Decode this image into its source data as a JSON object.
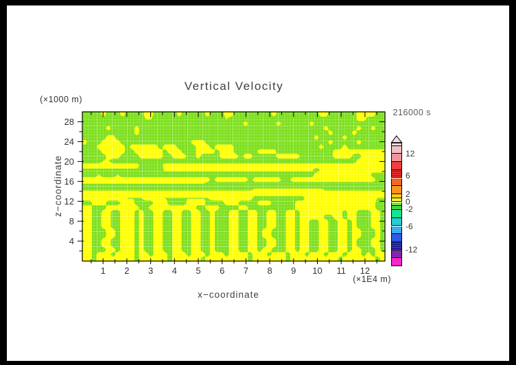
{
  "title": "Vertical Velocity",
  "timestamp": "216000 s",
  "x_axis": {
    "label": "x−coordinate",
    "units": "(×1E4 m)",
    "major_ticks": [
      1,
      2,
      3,
      4,
      5,
      6,
      7,
      8,
      9,
      10,
      11,
      12
    ],
    "minor_ticks": [
      0.5,
      1.5,
      2.5,
      3.5,
      4.5,
      5.5,
      6.5,
      7.5,
      8.5,
      9.5,
      10.5,
      11.5,
      12.5
    ],
    "range": [
      0.13,
      12.84
    ]
  },
  "z_axis": {
    "label": "z−coordinate",
    "units": "(×1000 m)",
    "major_ticks": [
      4,
      8,
      12,
      16,
      20,
      24,
      28
    ],
    "minor_ticks": [
      2,
      6,
      10,
      14,
      18,
      22,
      26
    ],
    "range": [
      0,
      30
    ]
  },
  "colorbar": {
    "labels": [
      {
        "value": "12",
        "y": 216.2
      },
      {
        "value": "6",
        "y": 248.0
      },
      {
        "value": "2",
        "y": 275.3
      },
      {
        "value": "0",
        "y": 286.0
      },
      {
        "value": "-2",
        "y": 297.0
      },
      {
        "value": "-6",
        "y": 322.0
      },
      {
        "value": "-12",
        "y": 356.3
      }
    ],
    "bands": [
      {
        "color": "#f7dcdc",
        "h": 5.0
      },
      {
        "color": "#f6b8bf",
        "h": 11.7
      },
      {
        "color": "#f48b90",
        "h": 11.7
      },
      {
        "color": "#ef3030",
        "h": 11.7
      },
      {
        "color": "#e60b0b",
        "h": 11.7
      },
      {
        "color": "#f45c10",
        "h": 11.7
      },
      {
        "color": "#fb8d10",
        "h": 11.7
      },
      {
        "color": "#fec40c",
        "h": 5.8
      },
      {
        "color": "#ffff00",
        "h": 5.8
      },
      {
        "color": "#7de01c",
        "h": 5.8
      },
      {
        "color": "#2fd32f",
        "h": 5.8
      },
      {
        "color": "#00e389",
        "h": 11.7
      },
      {
        "color": "#0bcfd0",
        "h": 11.7
      },
      {
        "color": "#2da4f2",
        "h": 11.7
      },
      {
        "color": "#1f4fe0",
        "h": 11.7
      },
      {
        "color": "#1b1b8f",
        "h": 11.7
      },
      {
        "color": "#7b14ad",
        "h": 11.7
      },
      {
        "color": "#f618c4",
        "h": 11.4
      }
    ],
    "arrow_color": "#f7dcdc"
  },
  "chart_data": {
    "type": "heatmap",
    "title": "Vertical Velocity",
    "time_label": "216000 s",
    "xlabel": "x−coordinate (×1E4 m)",
    "ylabel": "z−coordinate (×1000 m)",
    "xlim": [
      0.13,
      12.84
    ],
    "ylim": [
      0,
      30.2
    ],
    "field_colors": {
      "positive_band_0_1": "#ffff00",
      "negative_band_-1_0": "#7de01c"
    },
    "grid_encoding": "rows top-to-bottom, chars 0-9 map to field 0..1; >0.5 renders yellow (updraft), <=0.5 green (downdraft)",
    "grid": [
      "0000900090000990000090000090009900000000900000000099000000999900",
      "0000000000000550000000000000005000000000000000000000000000990000",
      "0000000000000000000000000000000000900000090000009000000000000000",
      "0000090000090000000000000000000000000000000000000009000000900900",
      "0000000000090000000000000000000000000000000000000000900009000000",
      "0000099000000000000000000000000000000000000000000900000900000000",
      "9000999900000000000000099900000000000000000000000000900000900000",
      "0009999990999999099900009990999900000000000000000090000900000000",
      "0000999990099999909990009999099900000999900000000000099999999999",
      "0000099900009999900999009000099990990000099999000000099990099999",
      "0000550000000000000000000000000000000000000000000000000000999999",
      "9999999999990000099999999999999999999999999999999999999999999999",
      "2222222222220000066666666666666666666666666666666066999999999999",
      "0005000500000000000000000000000000000000000000000999999999999000",
      "9999999999999999999999999990999999909999990099999999999999999900",
      "4444444444444444444444444400000000000000000000000000000000000000",
      "2222222222222222222222222222222222225555555555555552222222222222",
      "9999999999999999999999999999999999999999999999999999999999999999",
      "9999999994444999944444444449999999990000000000099999999999999944",
      "0099900099900009990000999900009990000999000009999999999999999900",
      "9900099999990099999999990099900009900000000009999999999999999900",
      "9900990099909009900990099009000990099009900990999999999099000990",
      "9900990099909009900990099009000990099009900990999990099099000990",
      "9900990099909009900990099009000990099009900990990099009909000990",
      "9900990099909009900990099009000990099009900990990099009909000990",
      "9900099099909009900990099009000990099099000990990099009909900090",
      "9900099099909009900990099009000990099099000990990099009909900090",
      "9900990099909009900990099009000990099009900990990099009909000990",
      "9900990099909009900990099009000990099009900990990099009909000990",
      "9900099099909009900990099009000990099099000990990099009909900090",
      "9909990999909909990999099909990999909990999099909990999099909099",
      "9909999999909999990999999099999999909999999099999999990999999909"
    ]
  }
}
